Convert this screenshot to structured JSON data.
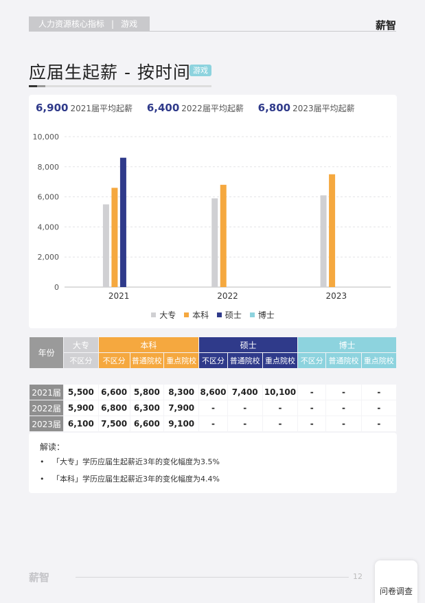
{
  "header": {
    "category": "人力资源核心指标",
    "separator": "|",
    "industry": "游戏",
    "brand": "薪智"
  },
  "page_title": "应届生起薪 - 按时间",
  "tag": "游戏",
  "averages": [
    {
      "value": "6,900",
      "label": "2021届平均起薪"
    },
    {
      "value": "6,400",
      "label": "2022届平均起薪"
    },
    {
      "value": "6,800",
      "label": "2023届平均起薪"
    }
  ],
  "chart_data": {
    "type": "bar",
    "categories": [
      "2021",
      "2022",
      "2023"
    ],
    "series": [
      {
        "name": "大专",
        "values": [
          5500,
          5900,
          6100
        ]
      },
      {
        "name": "本科",
        "values": [
          6600,
          6800,
          7500
        ]
      },
      {
        "name": "硕士",
        "values": [
          8600,
          null,
          null
        ]
      },
      {
        "name": "博士",
        "values": [
          null,
          null,
          null
        ]
      }
    ],
    "ylim": [
      0,
      10000
    ],
    "yticks": [
      "0",
      "2,000",
      "4,000",
      "6,000",
      "8,000",
      "10,000"
    ],
    "colors": [
      "#d0d0d3",
      "#f5a83f",
      "#2f3a8a",
      "#8dd3de"
    ],
    "legend_position": "bottom",
    "grid": true
  },
  "table": {
    "year_header": "年份",
    "groups": [
      "大专",
      "本科",
      "硕士",
      "博士"
    ],
    "subheaders": [
      "不区分",
      "不区分",
      "普通院校",
      "重点院校",
      "不区分",
      "普通院校",
      "重点院校",
      "不区分",
      "普通院校",
      "重点院校"
    ],
    "rows": [
      {
        "year": "2021届",
        "cells": [
          "5,500",
          "6,600",
          "5,800",
          "8,300",
          "8,600",
          "7,400",
          "10,100",
          "-",
          "-",
          "-"
        ]
      },
      {
        "year": "2022届",
        "cells": [
          "5,900",
          "6,800",
          "6,300",
          "7,900",
          "-",
          "-",
          "-",
          "-",
          "-",
          "-"
        ]
      },
      {
        "year": "2023届",
        "cells": [
          "6,100",
          "7,500",
          "6,600",
          "9,100",
          "-",
          "-",
          "-",
          "-",
          "-",
          "-"
        ]
      }
    ]
  },
  "notes": {
    "title": "解读：",
    "items": [
      "「大专」学历应届生起薪近3年的变化幅度为3.5%",
      "「本科」学历应届生起薪近3年的变化幅度为4.4%"
    ]
  },
  "footer": {
    "logo": "薪智",
    "page": "12",
    "survey": "问卷调查"
  }
}
